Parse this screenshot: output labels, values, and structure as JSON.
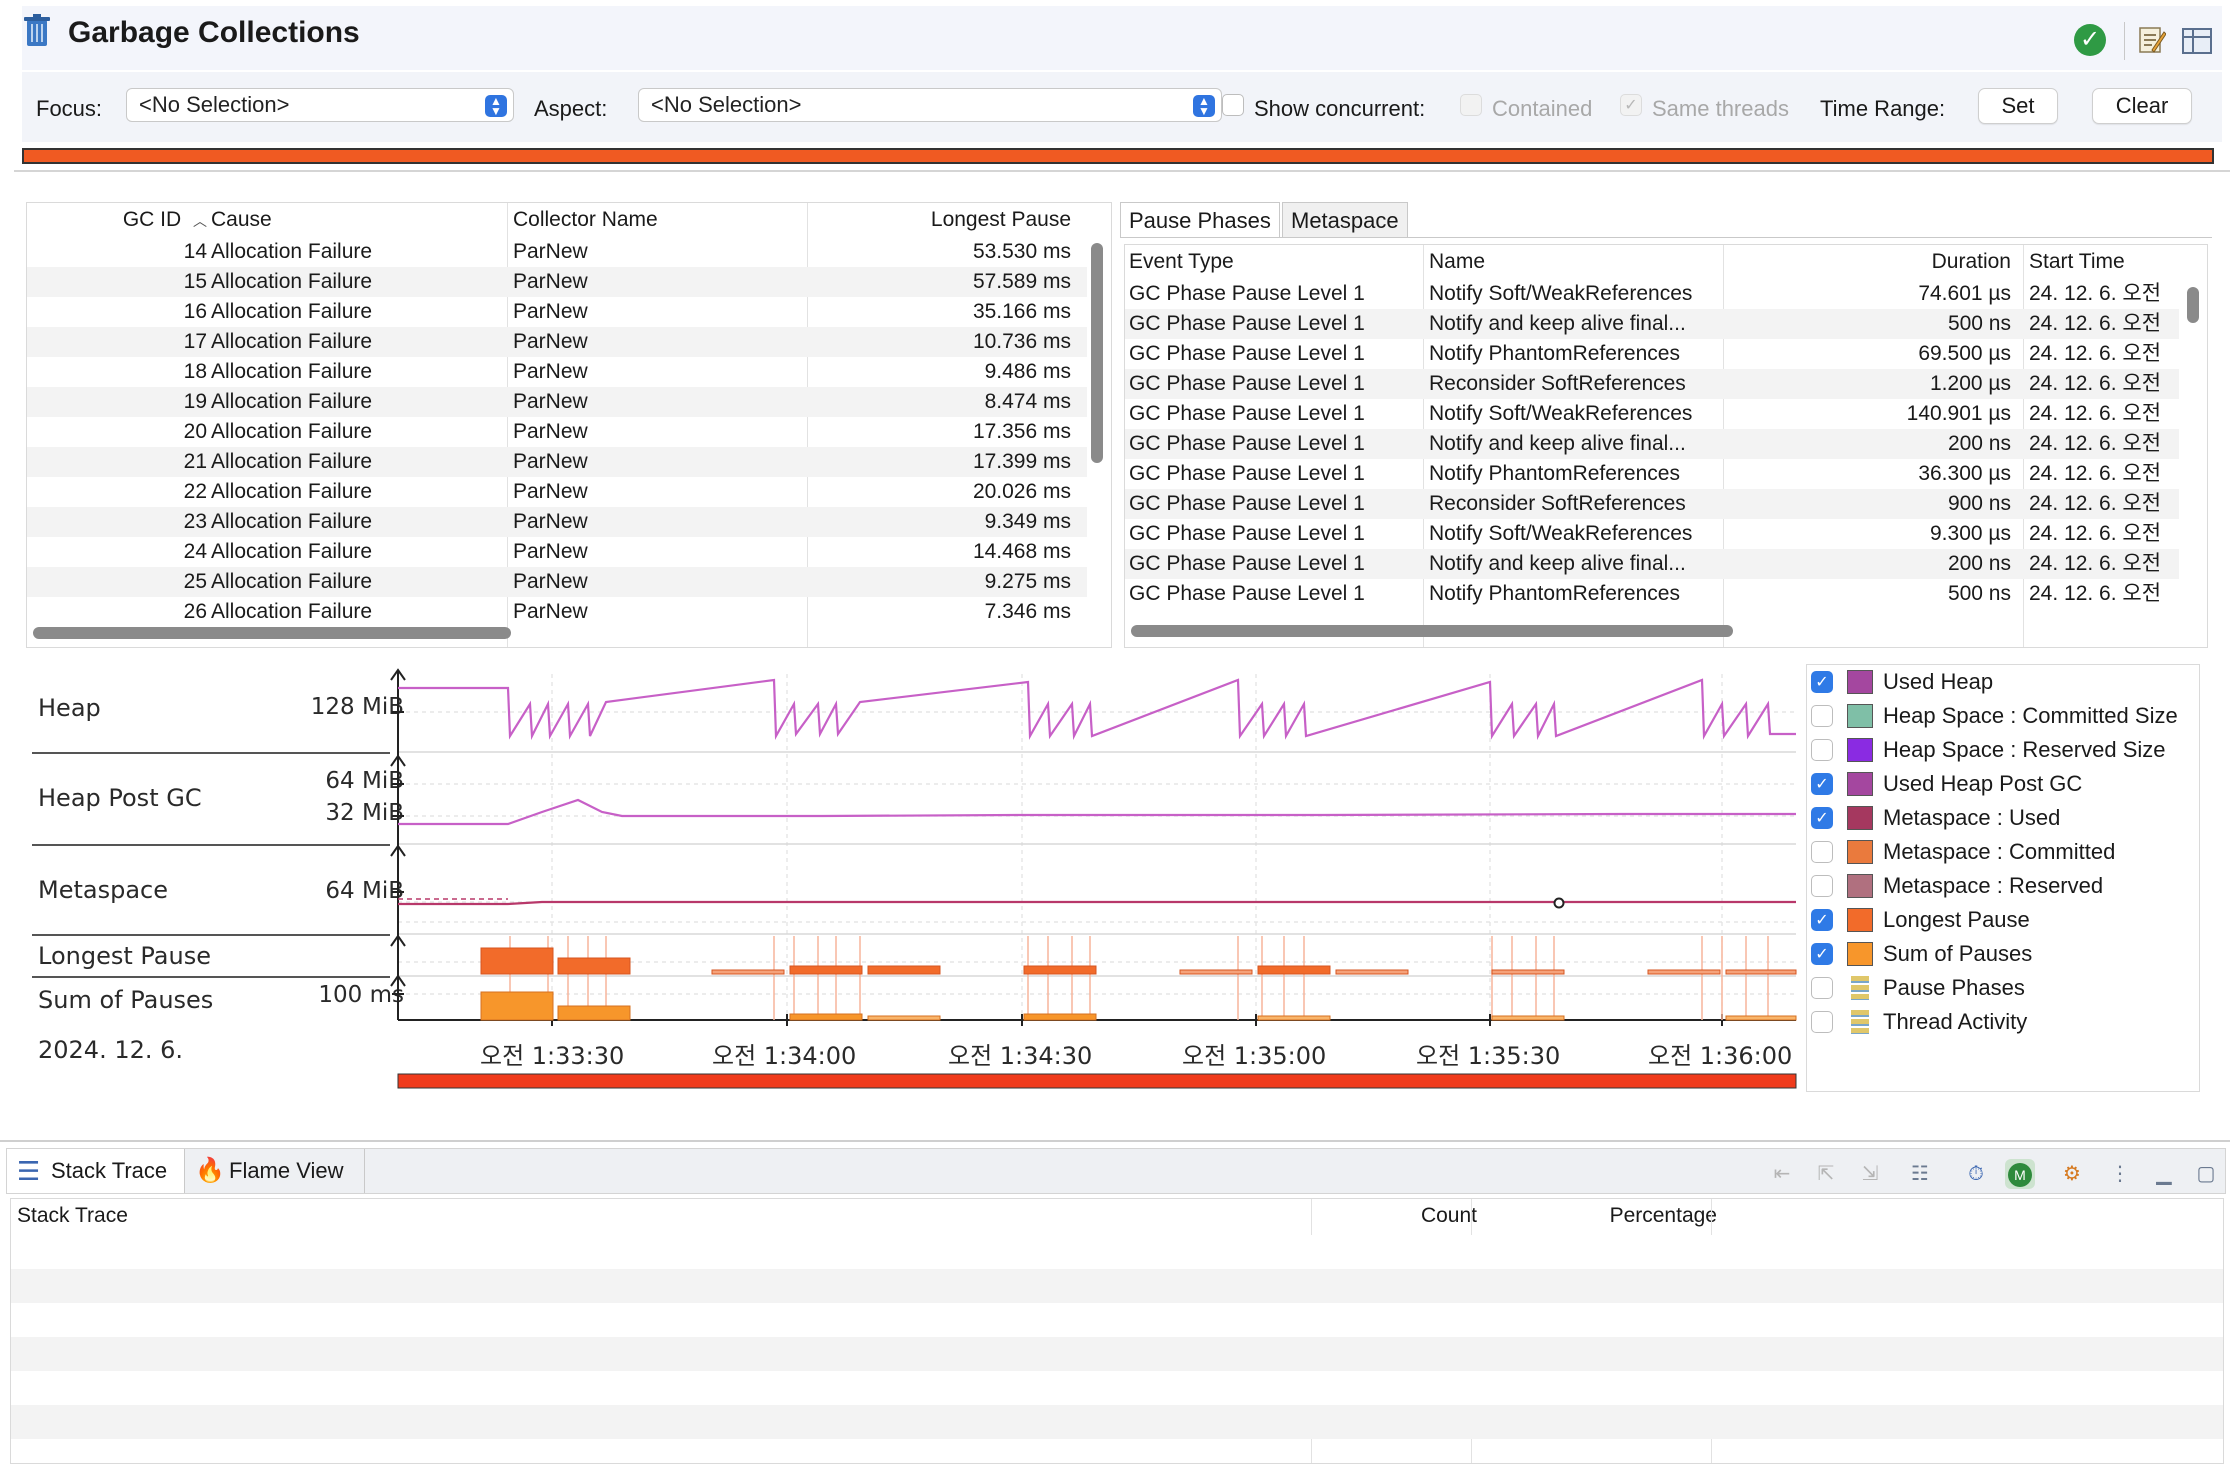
{
  "window": {
    "title": "Garbage Collections",
    "status_icon": "check-circle-icon"
  },
  "toolbar": {
    "focus_label": "Focus:",
    "focus_value": "<No Selection>",
    "aspect_label": "Aspect:",
    "aspect_value": "<No Selection>",
    "show_concurrent_label": "Show concurrent:",
    "show_concurrent_checked": false,
    "contained_label": "Contained",
    "contained_checked": false,
    "same_threads_label": "Same threads",
    "same_threads_checked": true,
    "time_range_label": "Time Range:",
    "set_label": "Set",
    "clear_label": "Clear",
    "range_bar_color": "#f05a22"
  },
  "gc_table": {
    "headers": {
      "id": "GC ID",
      "cause": "Cause",
      "collector": "Collector Name",
      "pause": "Longest Pause"
    },
    "sort_indicator": "^",
    "rows": [
      {
        "id": "14",
        "cause": "Allocation Failure",
        "collector": "ParNew",
        "pause": "53.530 ms"
      },
      {
        "id": "15",
        "cause": "Allocation Failure",
        "collector": "ParNew",
        "pause": "57.589 ms"
      },
      {
        "id": "16",
        "cause": "Allocation Failure",
        "collector": "ParNew",
        "pause": "35.166 ms"
      },
      {
        "id": "17",
        "cause": "Allocation Failure",
        "collector": "ParNew",
        "pause": "10.736 ms"
      },
      {
        "id": "18",
        "cause": "Allocation Failure",
        "collector": "ParNew",
        "pause": "9.486 ms"
      },
      {
        "id": "19",
        "cause": "Allocation Failure",
        "collector": "ParNew",
        "pause": "8.474 ms"
      },
      {
        "id": "20",
        "cause": "Allocation Failure",
        "collector": "ParNew",
        "pause": "17.356 ms"
      },
      {
        "id": "21",
        "cause": "Allocation Failure",
        "collector": "ParNew",
        "pause": "17.399 ms"
      },
      {
        "id": "22",
        "cause": "Allocation Failure",
        "collector": "ParNew",
        "pause": "20.026 ms"
      },
      {
        "id": "23",
        "cause": "Allocation Failure",
        "collector": "ParNew",
        "pause": "9.349 ms"
      },
      {
        "id": "24",
        "cause": "Allocation Failure",
        "collector": "ParNew",
        "pause": "14.468 ms"
      },
      {
        "id": "25",
        "cause": "Allocation Failure",
        "collector": "ParNew",
        "pause": "9.275 ms"
      },
      {
        "id": "26",
        "cause": "Allocation Failure",
        "collector": "ParNew",
        "pause": "7.346 ms"
      }
    ]
  },
  "phases_panel": {
    "tabs": [
      "Pause Phases",
      "Metaspace"
    ],
    "active_tab": 0,
    "headers": {
      "type": "Event Type",
      "name": "Name",
      "duration": "Duration",
      "start": "Start Time"
    },
    "rows": [
      {
        "type": "GC Phase Pause Level 1",
        "name": "Notify Soft/WeakReferences",
        "duration": "74.601 µs",
        "start": "24. 12. 6. 오전"
      },
      {
        "type": "GC Phase Pause Level 1",
        "name": "Notify and keep alive final...",
        "duration": "500 ns",
        "start": "24. 12. 6. 오전"
      },
      {
        "type": "GC Phase Pause Level 1",
        "name": "Notify PhantomReferences",
        "duration": "69.500 µs",
        "start": "24. 12. 6. 오전"
      },
      {
        "type": "GC Phase Pause Level 1",
        "name": "Reconsider SoftReferences",
        "duration": "1.200 µs",
        "start": "24. 12. 6. 오전"
      },
      {
        "type": "GC Phase Pause Level 1",
        "name": "Notify Soft/WeakReferences",
        "duration": "140.901 µs",
        "start": "24. 12. 6. 오전"
      },
      {
        "type": "GC Phase Pause Level 1",
        "name": "Notify and keep alive final...",
        "duration": "200 ns",
        "start": "24. 12. 6. 오전"
      },
      {
        "type": "GC Phase Pause Level 1",
        "name": "Notify PhantomReferences",
        "duration": "36.300 µs",
        "start": "24. 12. 6. 오전"
      },
      {
        "type": "GC Phase Pause Level 1",
        "name": "Reconsider SoftReferences",
        "duration": "900 ns",
        "start": "24. 12. 6. 오전"
      },
      {
        "type": "GC Phase Pause Level 1",
        "name": "Notify Soft/WeakReferences",
        "duration": "9.300 µs",
        "start": "24. 12. 6. 오전"
      },
      {
        "type": "GC Phase Pause Level 1",
        "name": "Notify and keep alive final...",
        "duration": "200 ns",
        "start": "24. 12. 6. 오전"
      },
      {
        "type": "GC Phase Pause Level 1",
        "name": "Notify PhantomReferences",
        "duration": "500 ns",
        "start": "24. 12. 6. 오전"
      }
    ]
  },
  "chart": {
    "lanes": {
      "heap": {
        "label": "Heap",
        "scale": "128 MiB"
      },
      "heap_post_gc": {
        "label": "Heap Post GC",
        "scale_top": "64 MiB",
        "scale_bottom": "32 MiB"
      },
      "metaspace": {
        "label": "Metaspace",
        "scale": "64 MiB"
      },
      "longest_pause": {
        "label": "Longest Pause"
      },
      "sum_pauses": {
        "label": "Sum of Pauses",
        "scale": "100 ms"
      }
    },
    "date_label": "2024. 12. 6.",
    "time_ticks": [
      "오전 1:33:30",
      "오전 1:34:00",
      "오전 1:34:30",
      "오전 1:35:00",
      "오전 1:35:30",
      "오전 1:36:00"
    ],
    "colors": {
      "heap": "#c760c7",
      "metaspace": "#b8386a",
      "pause": "#f26b2a",
      "range": "#f03b1c"
    }
  },
  "legend": [
    {
      "label": "Used Heap",
      "checked": true,
      "color": "#a4479f"
    },
    {
      "label": "Heap Space : Committed Size",
      "checked": false,
      "color": "#7fbfa7"
    },
    {
      "label": "Heap Space : Reserved Size",
      "checked": false,
      "color": "#8a2be2"
    },
    {
      "label": "Used Heap Post GC",
      "checked": true,
      "color": "#a4479f"
    },
    {
      "label": "Metaspace : Used",
      "checked": true,
      "color": "#a5385f"
    },
    {
      "label": "Metaspace : Committed",
      "checked": false,
      "color": "#ea7a3d"
    },
    {
      "label": "Metaspace : Reserved",
      "checked": false,
      "color": "#b0707f"
    },
    {
      "label": "Longest Pause",
      "checked": true,
      "color": "#f26b2a"
    },
    {
      "label": "Sum of Pauses",
      "checked": true,
      "color": "#f7962b"
    },
    {
      "label": "Pause Phases",
      "checked": false,
      "color": "stack"
    },
    {
      "label": "Thread Activity",
      "checked": false,
      "color": "stack"
    }
  ],
  "bottom": {
    "tabs": [
      "Stack Trace",
      "Flame View"
    ],
    "active_tab": 0,
    "headers": {
      "trace": "Stack Trace",
      "count": "Count",
      "percentage": "Percentage"
    }
  }
}
